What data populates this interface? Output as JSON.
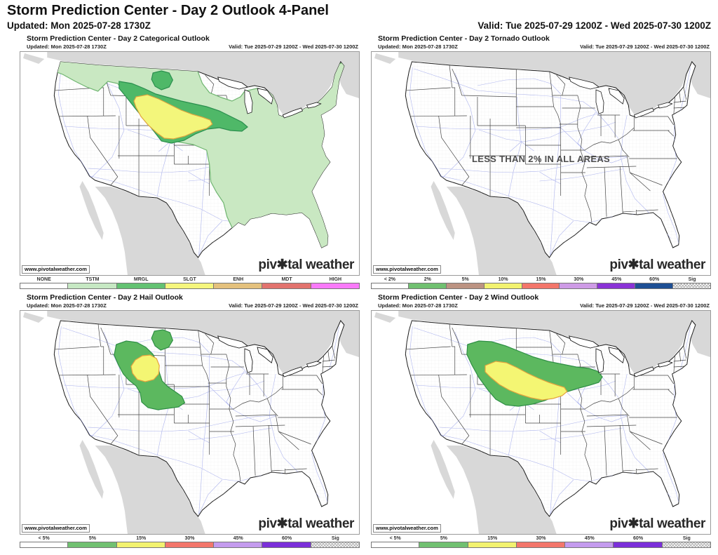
{
  "page": {
    "title": "Storm Prediction Center - Day 2 Outlook 4-Panel",
    "updated": "Updated: Mon 2025-07-28 1730Z",
    "valid": "Valid: Tue 2025-07-29 1200Z - Wed 2025-07-30 1200Z"
  },
  "branding": {
    "watermark": "www.pivotalweather.com",
    "logo": "piv✱tal weather"
  },
  "panels": [
    {
      "key": "categorical",
      "title": "Storm Prediction Center - Day 2 Categorical Outlook",
      "updated": "Updated: Mon 2025-07-28 1730Z",
      "valid": "Valid: Tue 2025-07-29 1200Z - Wed 2025-07-30 1200Z",
      "note": "",
      "areas_shown": [
        "TSTM",
        "MRGL",
        "SLGT"
      ],
      "legend": [
        {
          "label": "NONE",
          "color": "#ffffff"
        },
        {
          "label": "TSTM",
          "color": "#c6e8c3"
        },
        {
          "label": "MRGL",
          "color": "#63c272"
        },
        {
          "label": "SLGT",
          "color": "#f5f67d"
        },
        {
          "label": "ENH",
          "color": "#e4c17d"
        },
        {
          "label": "MDT",
          "color": "#e2736e"
        },
        {
          "label": "HIGH",
          "color": "#f97af9"
        }
      ]
    },
    {
      "key": "tornado",
      "title": "Storm Prediction Center - Day 2 Tornado Outlook",
      "updated": "Updated: Mon 2025-07-28 1730Z",
      "valid": "Valid: Tue 2025-07-29 1200Z - Wed 2025-07-30 1200Z",
      "note": "LESS THAN 2% IN ALL AREAS",
      "areas_shown": [],
      "legend": [
        {
          "label": "< 2%",
          "color": "#ffffff"
        },
        {
          "label": "2%",
          "color": "#70c070"
        },
        {
          "label": "5%",
          "color": "#bc9382"
        },
        {
          "label": "10%",
          "color": "#f2f26f"
        },
        {
          "label": "15%",
          "color": "#f3766b"
        },
        {
          "label": "30%",
          "color": "#ce9be6"
        },
        {
          "label": "45%",
          "color": "#8a33d6"
        },
        {
          "label": "60%",
          "color": "#1e4f94"
        },
        {
          "label": "Sig",
          "color": "#ffffff",
          "hatch": true
        }
      ]
    },
    {
      "key": "hail",
      "title": "Storm Prediction Center - Day 2 Hail Outlook",
      "updated": "Updated: Mon 2025-07-28 1730Z",
      "valid": "Valid: Tue 2025-07-29 1200Z - Wed 2025-07-30 1200Z",
      "note": "",
      "areas_shown": [
        "5%",
        "15%"
      ],
      "legend": [
        {
          "label": "< 5%",
          "color": "#ffffff"
        },
        {
          "label": "5%",
          "color": "#70c070"
        },
        {
          "label": "15%",
          "color": "#f2f26f"
        },
        {
          "label": "30%",
          "color": "#f3766b"
        },
        {
          "label": "45%",
          "color": "#c49bee"
        },
        {
          "label": "60%",
          "color": "#7b2fd9"
        },
        {
          "label": "Sig",
          "color": "#ffffff",
          "hatch": true
        }
      ]
    },
    {
      "key": "wind",
      "title": "Storm Prediction Center - Day 2 Wind Outlook",
      "updated": "Updated: Mon 2025-07-28 1730Z",
      "valid": "Valid: Tue 2025-07-29 1200Z - Wed 2025-07-30 1200Z",
      "note": "",
      "areas_shown": [
        "5%",
        "15%"
      ],
      "legend": [
        {
          "label": "< 5%",
          "color": "#ffffff"
        },
        {
          "label": "5%",
          "color": "#70c070"
        },
        {
          "label": "15%",
          "color": "#f2f26f"
        },
        {
          "label": "30%",
          "color": "#f3766b"
        },
        {
          "label": "45%",
          "color": "#c49bee"
        },
        {
          "label": "60%",
          "color": "#7b2fd9"
        },
        {
          "label": "Sig",
          "color": "#ffffff",
          "hatch": true
        }
      ]
    }
  ]
}
